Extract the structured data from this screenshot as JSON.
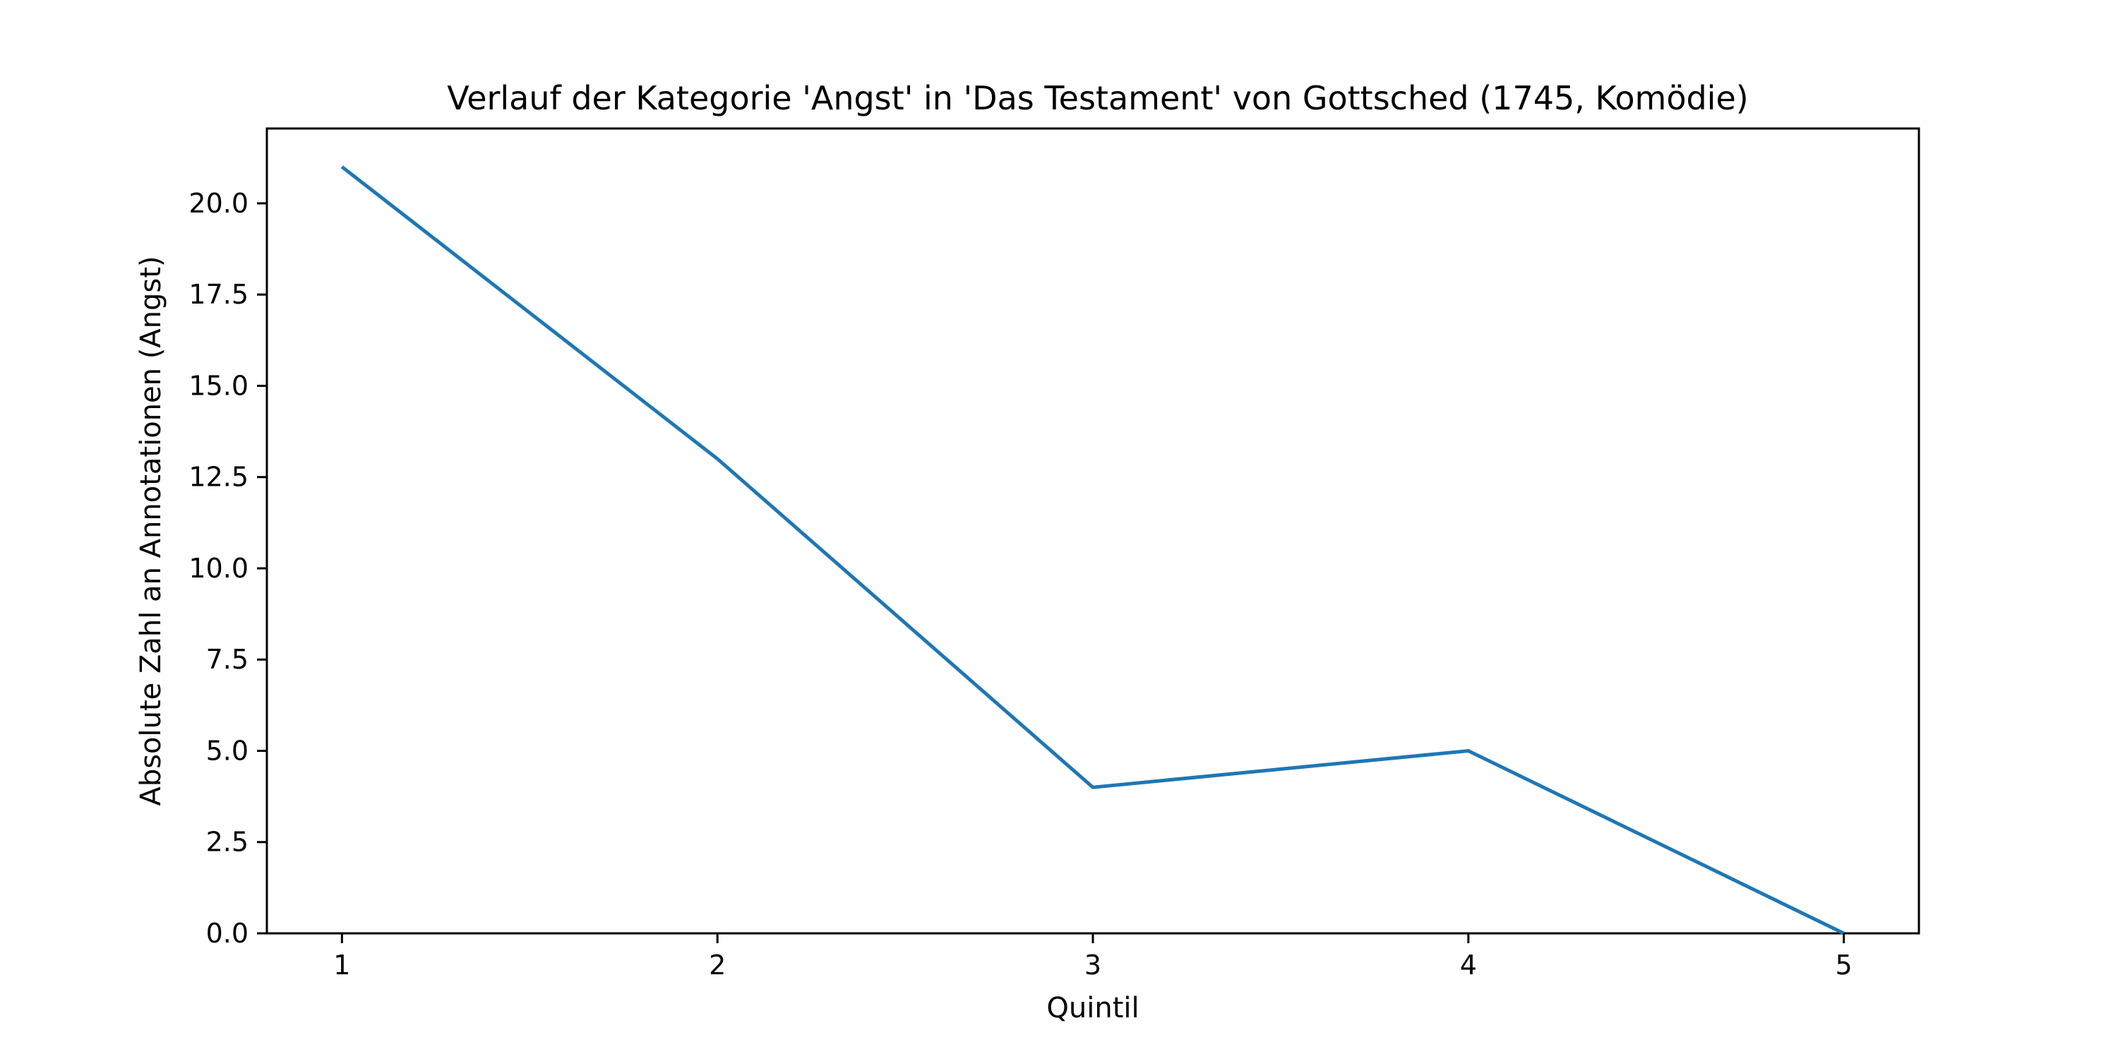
{
  "chart_data": {
    "type": "line",
    "title": "Verlauf der Kategorie 'Angst' in 'Das Testament' von Gottsched (1745, Komödie)",
    "xlabel": "Quintil",
    "ylabel": "Absolute Zahl an Annotationen (Angst)",
    "x": [
      1,
      2,
      3,
      4,
      5
    ],
    "x_tick_labels": [
      "1",
      "2",
      "3",
      "4",
      "5"
    ],
    "xlim": [
      0.8,
      5.2
    ],
    "ylim": [
      0,
      22.05
    ],
    "y_ticks": [
      0.0,
      2.5,
      5.0,
      7.5,
      10.0,
      12.5,
      15.0,
      17.5,
      20.0
    ],
    "y_tick_labels": [
      "0.0",
      "2.5",
      "5.0",
      "7.5",
      "10.0",
      "12.5",
      "15.0",
      "17.5",
      "20.0"
    ],
    "grid": false,
    "series": [
      {
        "values": [
          21,
          13,
          4,
          5,
          0
        ],
        "color": "#1f77b4"
      }
    ]
  }
}
